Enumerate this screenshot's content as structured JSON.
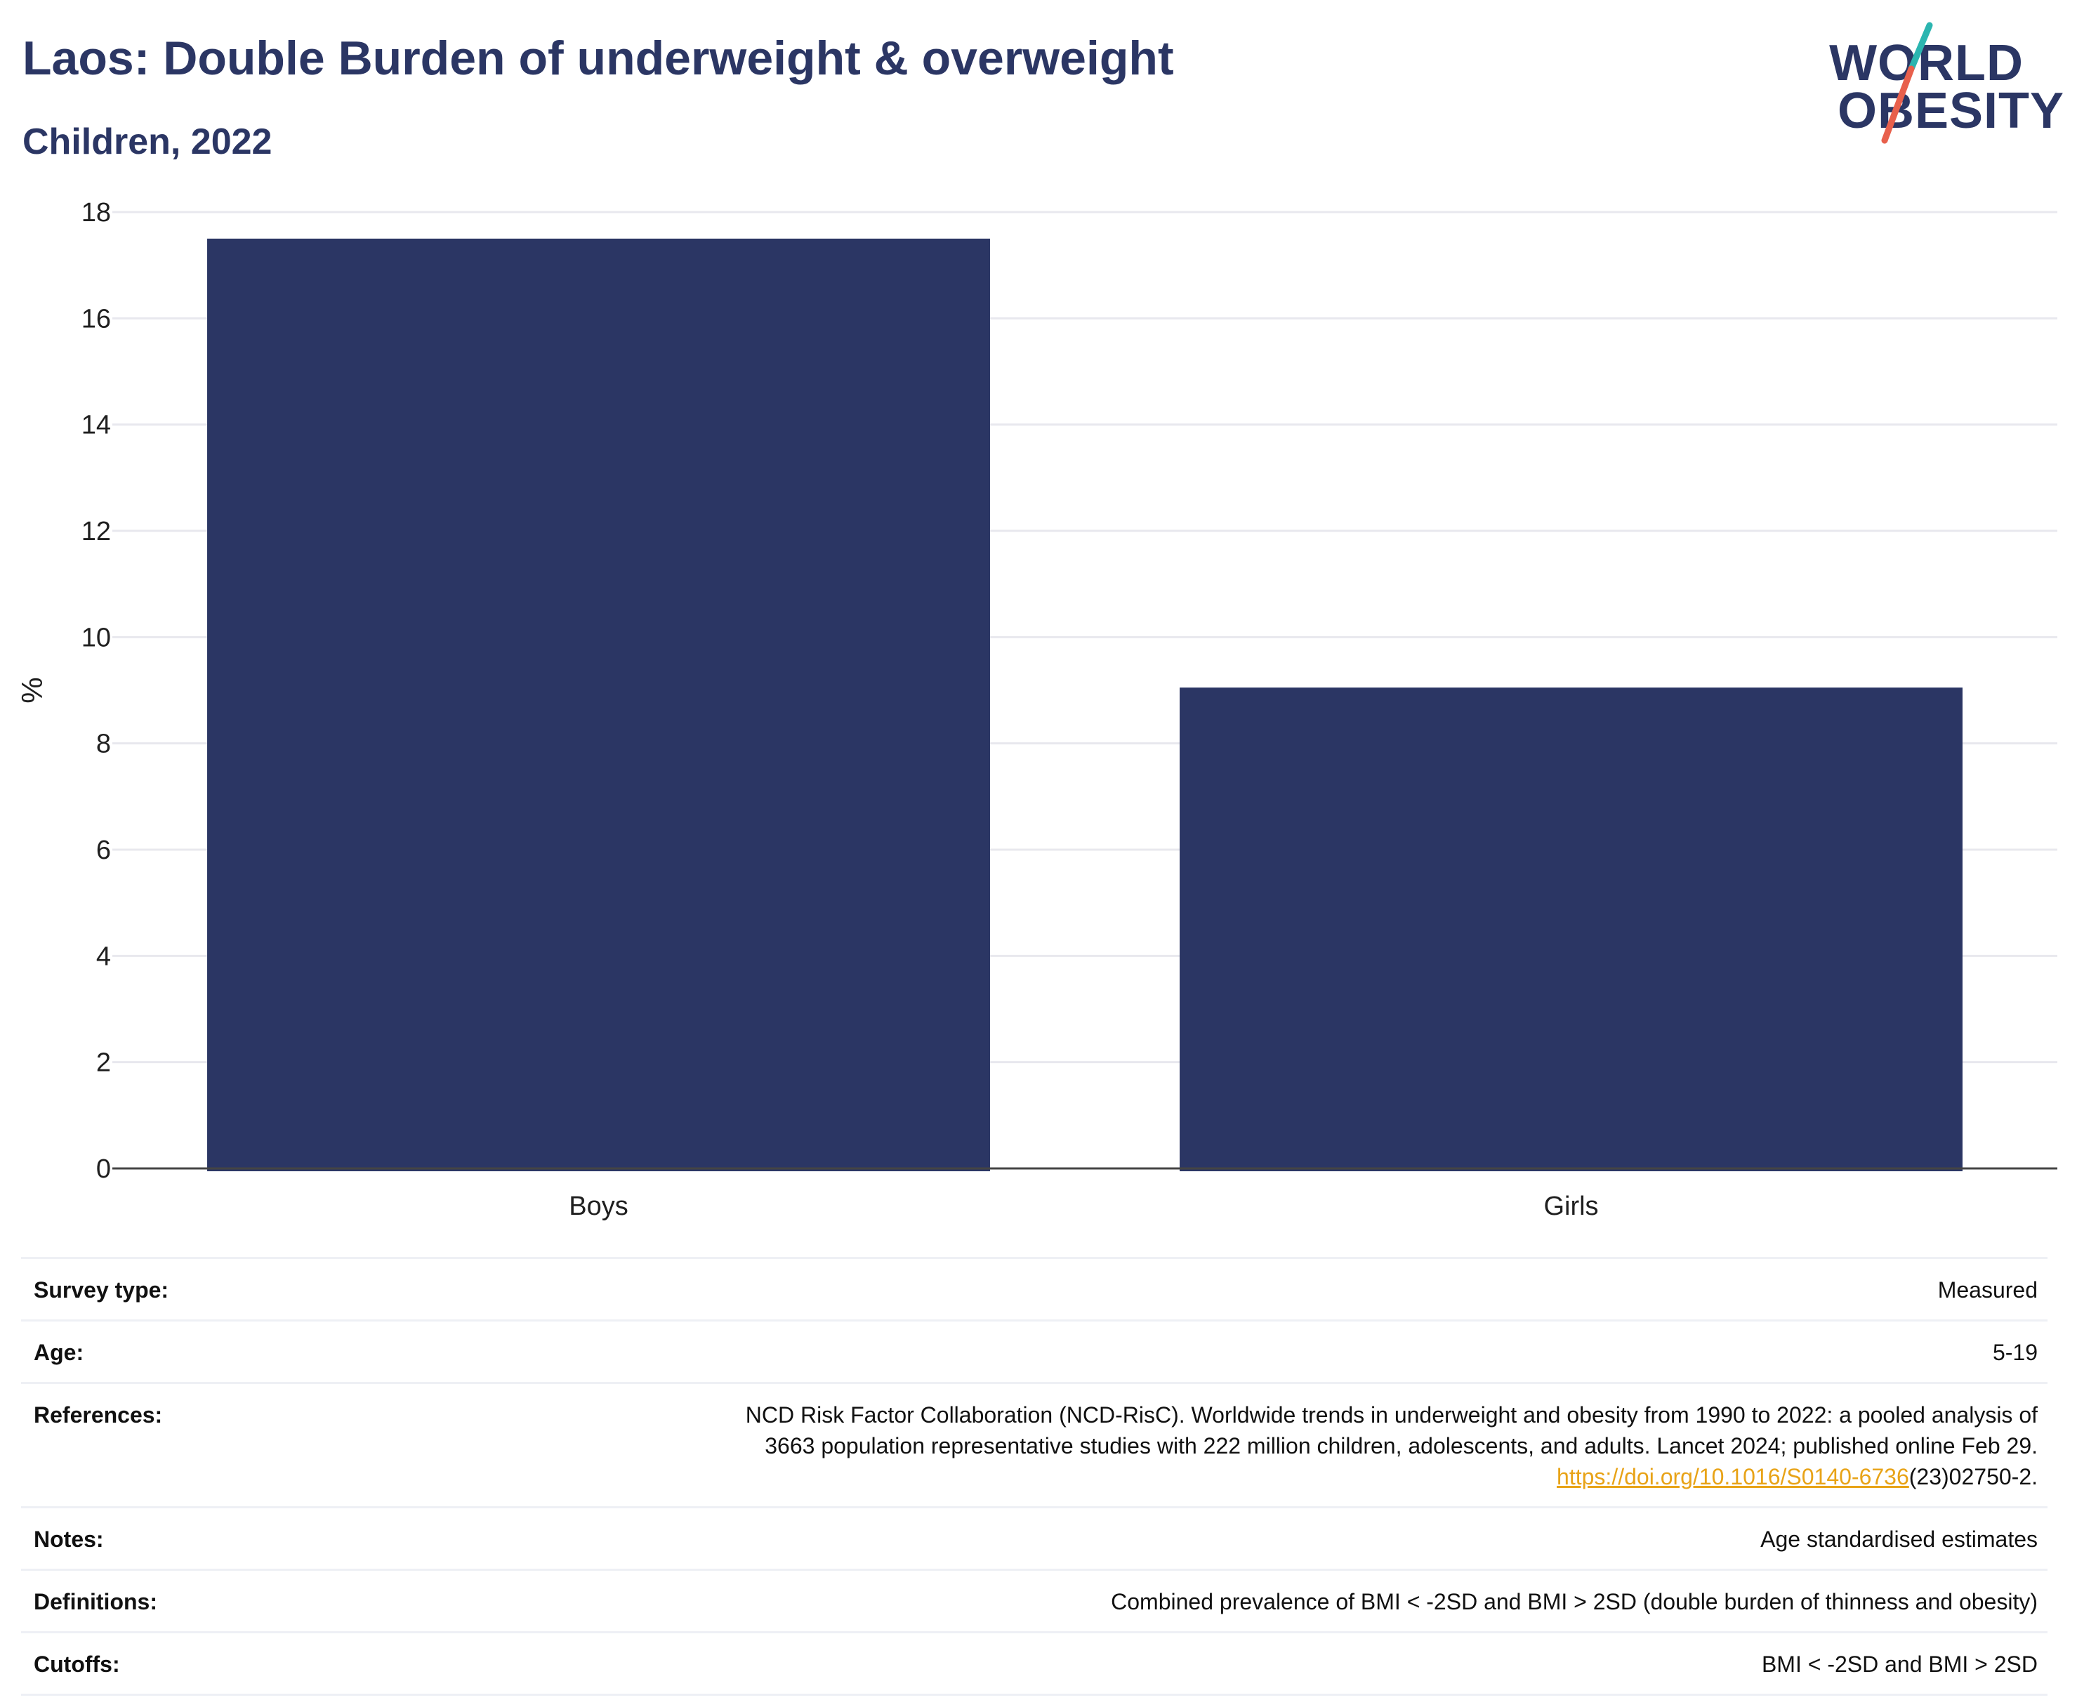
{
  "header": {
    "title": "Laos: Double Burden of underweight & overweight",
    "subtitle": "Children, 2022",
    "logo_line1": "WORLD",
    "logo_line2": "OBESITY"
  },
  "colors": {
    "bar": "#2b3664",
    "title": "#2b3664",
    "grid": "#e8e8ee",
    "link": "#e8a317",
    "logo_teal": "#2bb5b0",
    "logo_red": "#e8604c"
  },
  "chart_data": {
    "type": "bar",
    "categories": [
      "Boys",
      "Girls"
    ],
    "values": [
      17.5,
      9.05
    ],
    "xlabel": "",
    "ylabel": "%",
    "ylim": [
      0,
      18
    ],
    "yticks": [
      0,
      2,
      4,
      6,
      8,
      10,
      12,
      14,
      16,
      18
    ],
    "grid": true,
    "legend": "none"
  },
  "meta": {
    "survey_type": {
      "label": "Survey type:",
      "value": "Measured"
    },
    "age": {
      "label": "Age:",
      "value": "5-19"
    },
    "references": {
      "label": "References:",
      "line1": "NCD Risk Factor Collaboration (NCD-RisC). Worldwide trends in underweight and obesity from 1990 to 2022: a pooled analysis of",
      "line2": "3663 population representative studies with 222 million children, adolescents, and adults. Lancet 2024; published online Feb 29.",
      "link": "https://doi.org/10.1016/S0140-6736",
      "after_link": "(23)02750-2."
    },
    "notes": {
      "label": "Notes:",
      "value": "Age standardised estimates"
    },
    "definitions": {
      "label": "Definitions:",
      "value": "Combined prevalence of BMI < -2SD and BMI > 2SD (double burden of thinness and obesity)"
    },
    "cutoffs": {
      "label": "Cutoffs:",
      "value": "BMI < -2SD and BMI > 2SD"
    }
  }
}
